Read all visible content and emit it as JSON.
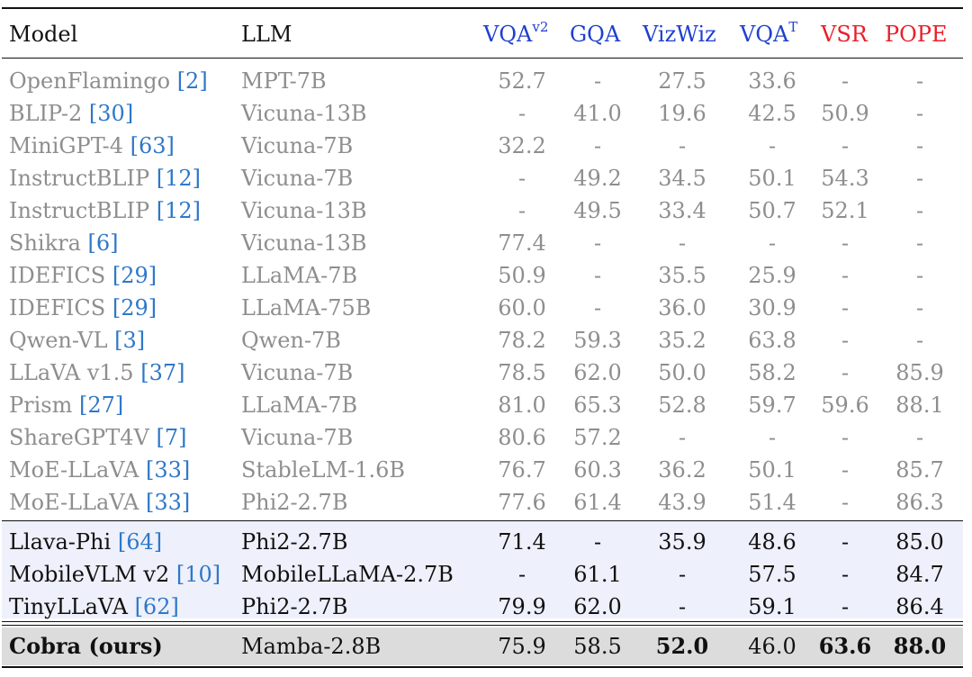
{
  "header": {
    "model": "Model",
    "llm": "LLM",
    "vqa2_base": "VQA",
    "vqa2_sup": "v2",
    "gqa": "GQA",
    "vizwiz": "VizWiz",
    "vqat_base": "VQA",
    "vqat_sup": "T",
    "vsr": "VSR",
    "pope": "POPE"
  },
  "colors": {
    "blue_header": "#1f3fd0",
    "red_header": "#e8202a",
    "citation": "#2f78c8",
    "gray_text": "#8e8e8e",
    "tiny_band": "#eef0fb",
    "ours_band": "#dcdcdc"
  },
  "rows": [
    {
      "model": "OpenFlamingo",
      "cite": "[2]",
      "llm": "MPT-7B",
      "vqa2": "52.7",
      "gqa": "-",
      "vizwiz": "27.5",
      "vqat": "33.6",
      "vsr": "-",
      "pope": "-"
    },
    {
      "model": "BLIP-2",
      "cite": "[30]",
      "llm": "Vicuna-13B",
      "vqa2": "-",
      "gqa": "41.0",
      "vizwiz": "19.6",
      "vqat": "42.5",
      "vsr": "50.9",
      "pope": "-"
    },
    {
      "model": "MiniGPT-4",
      "cite": "[63]",
      "llm": "Vicuna-7B",
      "vqa2": "32.2",
      "gqa": "-",
      "vizwiz": "-",
      "vqat": "-",
      "vsr": "-",
      "pope": "-"
    },
    {
      "model": "InstructBLIP",
      "cite": "[12]",
      "llm": "Vicuna-7B",
      "vqa2": "-",
      "gqa": "49.2",
      "vizwiz": "34.5",
      "vqat": "50.1",
      "vsr": "54.3",
      "pope": "-"
    },
    {
      "model": "InstructBLIP",
      "cite": "[12]",
      "llm": "Vicuna-13B",
      "vqa2": "-",
      "gqa": "49.5",
      "vizwiz": "33.4",
      "vqat": "50.7",
      "vsr": "52.1",
      "pope": "-"
    },
    {
      "model": "Shikra",
      "cite": "[6]",
      "llm": "Vicuna-13B",
      "vqa2": "77.4",
      "gqa": "-",
      "vizwiz": "-",
      "vqat": "-",
      "vsr": "-",
      "pope": "-"
    },
    {
      "model": "IDEFICS",
      "cite": "[29]",
      "llm": "LLaMA-7B",
      "vqa2": "50.9",
      "gqa": "-",
      "vizwiz": "35.5",
      "vqat": "25.9",
      "vsr": "-",
      "pope": "-"
    },
    {
      "model": "IDEFICS",
      "cite": "[29]",
      "llm": "LLaMA-75B",
      "vqa2": "60.0",
      "gqa": "-",
      "vizwiz": "36.0",
      "vqat": "30.9",
      "vsr": "-",
      "pope": "-"
    },
    {
      "model": "Qwen-VL",
      "cite": "[3]",
      "llm": "Qwen-7B",
      "vqa2": "78.2",
      "gqa": "59.3",
      "vizwiz": "35.2",
      "vqat": "63.8",
      "vsr": "-",
      "pope": "-"
    },
    {
      "model": "LLaVA v1.5",
      "cite": "[37]",
      "llm": "Vicuna-7B",
      "vqa2": "78.5",
      "gqa": "62.0",
      "vizwiz": "50.0",
      "vqat": "58.2",
      "vsr": "-",
      "pope": "85.9"
    },
    {
      "model": "Prism",
      "cite": "[27]",
      "llm": "LLaMA-7B",
      "vqa2": "81.0",
      "gqa": "65.3",
      "vizwiz": "52.8",
      "vqat": "59.7",
      "vsr": "59.6",
      "pope": "88.1"
    },
    {
      "model": "ShareGPT4V",
      "cite": "[7]",
      "llm": "Vicuna-7B",
      "vqa2": "80.6",
      "gqa": "57.2",
      "vizwiz": "-",
      "vqat": "-",
      "vsr": "-",
      "pope": "-"
    },
    {
      "model": "MoE-LLaVA",
      "cite": "[33]",
      "llm": "StableLM-1.6B",
      "vqa2": "76.7",
      "gqa": "60.3",
      "vizwiz": "36.2",
      "vqat": "50.1",
      "vsr": "-",
      "pope": "85.7"
    },
    {
      "model": "MoE-LLaVA",
      "cite": "[33]",
      "llm": "Phi2-2.7B",
      "vqa2": "77.6",
      "gqa": "61.4",
      "vizwiz": "43.9",
      "vqat": "51.4",
      "vsr": "-",
      "pope": "86.3"
    },
    {
      "model": "Llava-Phi",
      "cite": "[64]",
      "llm": "Phi2-2.7B",
      "vqa2": "71.4",
      "gqa": "-",
      "vizwiz": "35.9",
      "vqat": "48.6",
      "vsr": "-",
      "pope": "85.0"
    },
    {
      "model": "MobileVLM v2",
      "cite": "[10]",
      "llm": "MobileLLaMA-2.7B",
      "vqa2": "-",
      "gqa": "61.1",
      "vizwiz": "-",
      "vqat": "57.5",
      "vsr": "-",
      "pope": "84.7"
    },
    {
      "model": "TinyLLaVA",
      "cite": "[62]",
      "llm": "Phi2-2.7B",
      "vqa2": "79.9",
      "gqa": "62.0",
      "vizwiz": "-",
      "vqat": "59.1",
      "vsr": "-",
      "pope": "86.4"
    },
    {
      "model": "Cobra (ours)",
      "cite": "",
      "llm": "Mamba-2.8B",
      "vqa2": "75.9",
      "gqa": "58.5",
      "vizwiz": "52.0",
      "vqat": "46.0",
      "vsr": "63.6",
      "pope": "88.0"
    }
  ]
}
